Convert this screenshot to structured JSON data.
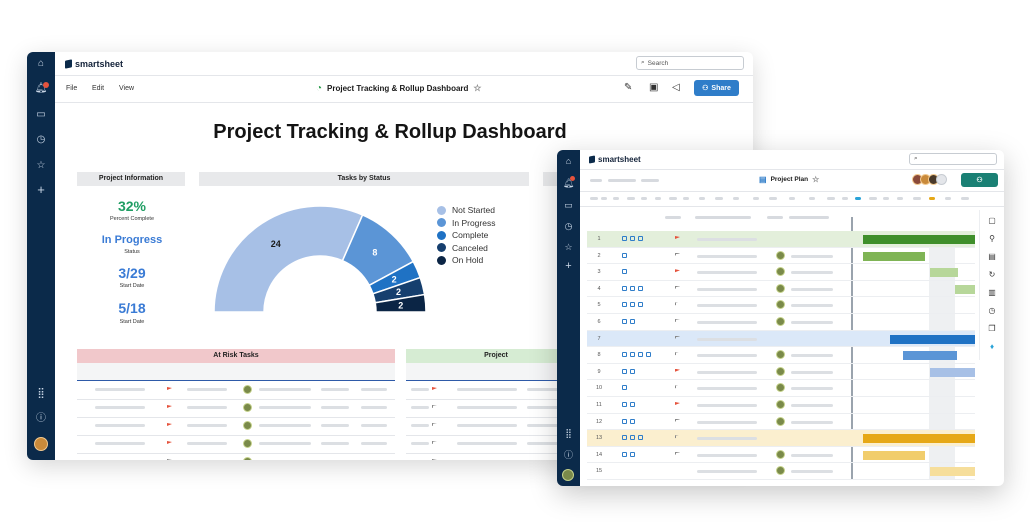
{
  "dashboard": {
    "brand": "smartsheet",
    "search_placeholder": "Search",
    "menu": [
      "File",
      "Edit",
      "View"
    ],
    "doc_title": "Project Tracking & Rollup Dashboard",
    "share_label": "Share",
    "heading": "Project Tracking & Rollup Dashboard",
    "project_info": {
      "title": "Project Information",
      "percent": "32%",
      "percent_label": "Percent Complete",
      "status": "In Progress",
      "status_label": "Status",
      "start": "3/29",
      "start_label": "Start Date",
      "end": "5/18",
      "end_label": "Start Date"
    },
    "tasks_by_status_title": "Tasks by Status",
    "at_risk_title": "At Risk Tasks",
    "project_panel_title": "Project",
    "colors": {
      "rail": "#0b2a4a",
      "accent": "#2f7dc9",
      "green": "#1f9d63",
      "blue_text": "#3a7bd5"
    }
  },
  "chart_data": {
    "type": "pie",
    "title": "Tasks by Status",
    "categories": [
      "Not Started",
      "In Progress",
      "Complete",
      "Canceled",
      "On Hold"
    ],
    "values": [
      24,
      8,
      2,
      2,
      2
    ],
    "colors": [
      "#a7c0e6",
      "#5b95d6",
      "#1f72c4",
      "#163f6e",
      "#0b2545"
    ],
    "style": "half-donut",
    "legend": "right"
  },
  "plan": {
    "brand": "smartsheet",
    "doc_title": "Project Plan",
    "rows": [
      {
        "n": "1",
        "icons": 3,
        "flag": "red",
        "avatar": false,
        "highlight": "green",
        "bar": {
          "color": "#3f8f2b",
          "start": 0.0,
          "end": 1.0
        }
      },
      {
        "n": "2",
        "icons": 1,
        "flag": "gray",
        "avatar": true,
        "highlight": "",
        "bar": {
          "color": "#7fb455",
          "start": 0.0,
          "end": 0.55
        }
      },
      {
        "n": "3",
        "icons": 1,
        "flag": "red",
        "avatar": true,
        "highlight": "",
        "bar": {
          "color": "#b7d79a",
          "start": 0.6,
          "end": 0.85
        }
      },
      {
        "n": "4",
        "icons": 3,
        "flag": "gray",
        "avatar": true,
        "highlight": "",
        "bar": {
          "color": "#b7d79a",
          "start": 0.82,
          "end": 1.0
        }
      },
      {
        "n": "5",
        "icons": 3,
        "flag": "gray",
        "avatar": true,
        "highlight": "",
        "bar": null
      },
      {
        "n": "6",
        "icons": 2,
        "flag": "gray",
        "avatar": true,
        "highlight": "",
        "bar": null
      },
      {
        "n": "7",
        "icons": 0,
        "flag": "gray",
        "avatar": false,
        "highlight": "blue",
        "bar": {
          "color": "#1f72c4",
          "start": 0.24,
          "end": 1.0
        }
      },
      {
        "n": "8",
        "icons": 4,
        "flag": "gray",
        "avatar": true,
        "highlight": "",
        "bar": {
          "color": "#5b95d6",
          "start": 0.36,
          "end": 0.84
        }
      },
      {
        "n": "9",
        "icons": 2,
        "flag": "red",
        "avatar": true,
        "highlight": "",
        "bar": {
          "color": "#a7c0e6",
          "start": 0.6,
          "end": 1.0
        }
      },
      {
        "n": "10",
        "icons": 1,
        "flag": "gray",
        "avatar": true,
        "highlight": "",
        "bar": null
      },
      {
        "n": "11",
        "icons": 2,
        "flag": "red",
        "avatar": true,
        "highlight": "",
        "bar": null
      },
      {
        "n": "12",
        "icons": 2,
        "flag": "gray",
        "avatar": true,
        "highlight": "",
        "bar": null
      },
      {
        "n": "13",
        "icons": 3,
        "flag": "gray",
        "avatar": false,
        "highlight": "yellow",
        "bar": {
          "color": "#e6a817",
          "start": 0.0,
          "end": 1.0
        }
      },
      {
        "n": "14",
        "icons": 2,
        "flag": "gray",
        "avatar": true,
        "highlight": "",
        "bar": {
          "color": "#f1cd6c",
          "start": 0.0,
          "end": 0.55
        }
      },
      {
        "n": "15",
        "icons": 0,
        "flag": "",
        "avatar": true,
        "highlight": "",
        "bar": {
          "color": "#f6de9b",
          "start": 0.6,
          "end": 1.0
        }
      }
    ]
  }
}
